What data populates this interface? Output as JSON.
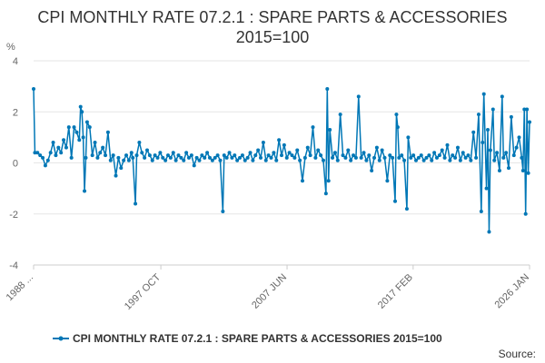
{
  "chart_data": {
    "type": "line",
    "title_line1": "CPI MONTHLY RATE 07.2.1 : SPARE PARTS & ACCESSORIES",
    "title_line2": "2015=100",
    "y_unit": "%",
    "ylim": [
      -4,
      4
    ],
    "y_ticks": [
      -4,
      -2,
      0,
      2,
      4
    ],
    "x_range": [
      1988.0,
      2026.0
    ],
    "x_ticks": [
      {
        "label": "1988 ...",
        "x": 1988.0
      },
      {
        "label": "1997 OCT",
        "x": 1997.75
      },
      {
        "label": "2007 JUN",
        "x": 2007.42
      },
      {
        "label": "2017 FEB",
        "x": 2017.08
      },
      {
        "label": "2026 JAN",
        "x": 2026.0
      }
    ],
    "grid": "horizontal",
    "series_color": "#0077b6",
    "series": [
      {
        "name": "CPI MONTHLY RATE 07.2.1 : SPARE PARTS & ACCESSORIES 2015=100",
        "points": [
          [
            1988.0,
            2.9
          ],
          [
            1988.1,
            0.4
          ],
          [
            1988.3,
            0.4
          ],
          [
            1988.5,
            0.3
          ],
          [
            1988.7,
            0.2
          ],
          [
            1988.9,
            -0.1
          ],
          [
            1989.1,
            0.1
          ],
          [
            1989.3,
            0.4
          ],
          [
            1989.5,
            0.8
          ],
          [
            1989.7,
            0.3
          ],
          [
            1989.9,
            0.6
          ],
          [
            1990.1,
            0.4
          ],
          [
            1990.3,
            0.9
          ],
          [
            1990.5,
            0.6
          ],
          [
            1990.7,
            1.4
          ],
          [
            1990.9,
            0.2
          ],
          [
            1991.1,
            1.4
          ],
          [
            1991.3,
            1.2
          ],
          [
            1991.5,
            0.9
          ],
          [
            1991.6,
            2.2
          ],
          [
            1991.7,
            2.0
          ],
          [
            1991.8,
            1.0
          ],
          [
            1991.9,
            -1.1
          ],
          [
            1992.0,
            0.2
          ],
          [
            1992.1,
            1.6
          ],
          [
            1992.3,
            1.4
          ],
          [
            1992.5,
            0.3
          ],
          [
            1992.7,
            0.8
          ],
          [
            1992.9,
            0.2
          ],
          [
            1993.1,
            0.4
          ],
          [
            1993.3,
            0.6
          ],
          [
            1993.5,
            0.3
          ],
          [
            1993.7,
            1.2
          ],
          [
            1993.9,
            0.1
          ],
          [
            1994.1,
            0.3
          ],
          [
            1994.3,
            -0.5
          ],
          [
            1994.5,
            0.2
          ],
          [
            1994.7,
            -0.2
          ],
          [
            1994.9,
            0.1
          ],
          [
            1995.1,
            0.3
          ],
          [
            1995.3,
            0.1
          ],
          [
            1995.5,
            0.4
          ],
          [
            1995.6,
            0.2
          ],
          [
            1995.8,
            -1.6
          ],
          [
            1995.9,
            0.3
          ],
          [
            1996.1,
            0.8
          ],
          [
            1996.3,
            0.4
          ],
          [
            1996.5,
            0.2
          ],
          [
            1996.7,
            0.5
          ],
          [
            1996.9,
            0.3
          ],
          [
            1997.1,
            0.1
          ],
          [
            1997.3,
            0.3
          ],
          [
            1997.5,
            0.2
          ],
          [
            1997.7,
            0.4
          ],
          [
            1997.9,
            0.2
          ],
          [
            1998.1,
            0.1
          ],
          [
            1998.3,
            0.3
          ],
          [
            1998.5,
            0.2
          ],
          [
            1998.7,
            0.4
          ],
          [
            1998.9,
            0.1
          ],
          [
            1999.1,
            0.3
          ],
          [
            1999.3,
            0.2
          ],
          [
            1999.5,
            0.1
          ],
          [
            1999.7,
            0.4
          ],
          [
            1999.9,
            0.2
          ],
          [
            2000.1,
            0.3
          ],
          [
            2000.3,
            -0.1
          ],
          [
            2000.5,
            0.2
          ],
          [
            2000.7,
            0.1
          ],
          [
            2000.9,
            0.3
          ],
          [
            2001.1,
            0.2
          ],
          [
            2001.3,
            0.4
          ],
          [
            2001.5,
            0.2
          ],
          [
            2001.7,
            0.1
          ],
          [
            2001.9,
            0.2
          ],
          [
            2002.1,
            0.3
          ],
          [
            2002.3,
            0.1
          ],
          [
            2002.5,
            -1.9
          ],
          [
            2002.6,
            0.3
          ],
          [
            2002.8,
            0.2
          ],
          [
            2003.0,
            0.4
          ],
          [
            2003.2,
            0.2
          ],
          [
            2003.4,
            0.3
          ],
          [
            2003.6,
            0.1
          ],
          [
            2003.8,
            0.2
          ],
          [
            2004.0,
            0.3
          ],
          [
            2004.2,
            0.1
          ],
          [
            2004.4,
            0.2
          ],
          [
            2004.6,
            0.4
          ],
          [
            2004.8,
            0.1
          ],
          [
            2005.0,
            0.3
          ],
          [
            2005.2,
            0.5
          ],
          [
            2005.4,
            0.2
          ],
          [
            2005.6,
            0.8
          ],
          [
            2005.8,
            0.1
          ],
          [
            2006.0,
            0.3
          ],
          [
            2006.2,
            0.2
          ],
          [
            2006.4,
            0.4
          ],
          [
            2006.6,
            0.1
          ],
          [
            2006.8,
            0.9
          ],
          [
            2007.0,
            0.3
          ],
          [
            2007.2,
            0.7
          ],
          [
            2007.4,
            0.2
          ],
          [
            2007.6,
            0.4
          ],
          [
            2007.8,
            0.3
          ],
          [
            2008.0,
            0.2
          ],
          [
            2008.2,
            0.5
          ],
          [
            2008.4,
            0.1
          ],
          [
            2008.6,
            -0.7
          ],
          [
            2008.8,
            0.2
          ],
          [
            2009.0,
            0.6
          ],
          [
            2009.2,
            0.3
          ],
          [
            2009.4,
            1.4
          ],
          [
            2009.6,
            0.2
          ],
          [
            2009.8,
            0.5
          ],
          [
            2010.0,
            0.3
          ],
          [
            2010.2,
            0.1
          ],
          [
            2010.4,
            -1.2
          ],
          [
            2010.5,
            2.9
          ],
          [
            2010.6,
            -0.7
          ],
          [
            2010.7,
            1.3
          ],
          [
            2010.9,
            0.2
          ],
          [
            2011.1,
            0.4
          ],
          [
            2011.3,
            0.1
          ],
          [
            2011.5,
            1.9
          ],
          [
            2011.7,
            0.3
          ],
          [
            2011.9,
            0.2
          ],
          [
            2012.1,
            0.5
          ],
          [
            2012.3,
            0.1
          ],
          [
            2012.5,
            0.3
          ],
          [
            2012.7,
            0.2
          ],
          [
            2012.9,
            2.6
          ],
          [
            2013.1,
            0.2
          ],
          [
            2013.3,
            0.4
          ],
          [
            2013.5,
            0.1
          ],
          [
            2013.7,
            0.3
          ],
          [
            2013.9,
            -0.3
          ],
          [
            2014.1,
            0.2
          ],
          [
            2014.3,
            0.6
          ],
          [
            2014.5,
            0.1
          ],
          [
            2014.7,
            0.5
          ],
          [
            2014.9,
            0.2
          ],
          [
            2015.1,
            -0.7
          ],
          [
            2015.3,
            0.3
          ],
          [
            2015.5,
            0.2
          ],
          [
            2015.7,
            -1.5
          ],
          [
            2015.8,
            1.9
          ],
          [
            2015.9,
            1.4
          ],
          [
            2016.0,
            0.2
          ],
          [
            2016.2,
            0.3
          ],
          [
            2016.4,
            0.1
          ],
          [
            2016.6,
            -1.8
          ],
          [
            2016.7,
            1.0
          ],
          [
            2016.9,
            0.2
          ],
          [
            2017.1,
            0.3
          ],
          [
            2017.3,
            0.1
          ],
          [
            2017.5,
            0.2
          ],
          [
            2017.7,
            0.3
          ],
          [
            2017.9,
            0.1
          ],
          [
            2018.1,
            0.2
          ],
          [
            2018.3,
            0.3
          ],
          [
            2018.5,
            0.1
          ],
          [
            2018.7,
            0.4
          ],
          [
            2018.9,
            0.2
          ],
          [
            2019.1,
            0.3
          ],
          [
            2019.3,
            0.5
          ],
          [
            2019.5,
            0.2
          ],
          [
            2019.7,
            0.7
          ],
          [
            2019.9,
            0.1
          ],
          [
            2020.1,
            0.3
          ],
          [
            2020.3,
            0.2
          ],
          [
            2020.5,
            0.6
          ],
          [
            2020.7,
            0.1
          ],
          [
            2020.9,
            0.4
          ],
          [
            2021.1,
            0.2
          ],
          [
            2021.3,
            0.3
          ],
          [
            2021.5,
            0.1
          ],
          [
            2021.7,
            1.2
          ],
          [
            2021.9,
            0.2
          ],
          [
            2022.1,
            1.9
          ],
          [
            2022.3,
            -1.9
          ],
          [
            2022.4,
            0.8
          ],
          [
            2022.5,
            2.7
          ],
          [
            2022.7,
            -1.0
          ],
          [
            2022.8,
            1.3
          ],
          [
            2022.9,
            -2.7
          ],
          [
            2023.0,
            0.5
          ],
          [
            2023.2,
            2.1
          ],
          [
            2023.3,
            0.1
          ],
          [
            2023.5,
            0.4
          ],
          [
            2023.7,
            -0.3
          ],
          [
            2023.9,
            2.6
          ],
          [
            2024.0,
            0.2
          ],
          [
            2024.2,
            0.4
          ],
          [
            2024.4,
            -0.2
          ],
          [
            2024.6,
            1.8
          ],
          [
            2024.8,
            0.3
          ],
          [
            2025.0,
            0.6
          ],
          [
            2025.2,
            1.0
          ],
          [
            2025.4,
            0.2
          ],
          [
            2025.5,
            -0.3
          ],
          [
            2025.6,
            2.1
          ],
          [
            2025.7,
            -2.0
          ],
          [
            2025.8,
            2.1
          ],
          [
            2025.9,
            -0.4
          ],
          [
            2026.0,
            1.6
          ]
        ]
      }
    ],
    "source_label": "Source:"
  }
}
